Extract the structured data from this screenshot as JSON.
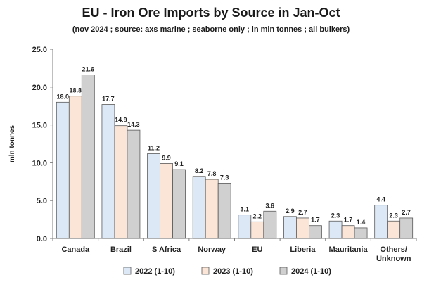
{
  "chart_data": {
    "type": "bar",
    "title": "EU - Iron Ore Imports by Source in Jan-Oct",
    "subtitle": "(nov 2024 ; source: axs marine ; seaborne only ; in mln tonnes ; all bulkers)",
    "ylabel": "mln tonnes",
    "xlabel": "",
    "ylim": [
      0,
      25
    ],
    "yticks": [
      "0.0",
      "5.0",
      "10.0",
      "15.0",
      "20.0",
      "25.0"
    ],
    "grid": false,
    "legend_position": "bottom",
    "categories": [
      "Canada",
      "Brazil",
      "S Africa",
      "Norway",
      "EU",
      "Liberia",
      "Mauritania",
      "Others/\nUnknown"
    ],
    "series": [
      {
        "name": "2022 (1-10)",
        "color": "#dce8f6",
        "values": [
          18.0,
          17.7,
          11.2,
          8.2,
          3.1,
          2.9,
          2.3,
          4.4
        ],
        "labels": [
          "18.0",
          "17.7",
          "11.2",
          "8.2",
          "3.1",
          "2.9",
          "2.3",
          "4.4"
        ]
      },
      {
        "name": "2023 (1-10)",
        "color": "#fbe5d6",
        "values": [
          18.8,
          14.9,
          9.9,
          7.8,
          2.2,
          2.7,
          1.7,
          2.3
        ],
        "labels": [
          "18.8",
          "14.9",
          "9.9",
          "7.8",
          "2.2",
          "2.7",
          "1.7",
          "2.3"
        ]
      },
      {
        "name": "2024 (1-10)",
        "color": "#d0d0d0",
        "values": [
          21.6,
          14.3,
          9.1,
          7.3,
          3.6,
          1.7,
          1.4,
          2.7
        ],
        "labels": [
          "21.6",
          "14.3",
          "9.1",
          "7.3",
          "3.6",
          "1.7",
          "1.4",
          "2.7"
        ]
      }
    ]
  }
}
